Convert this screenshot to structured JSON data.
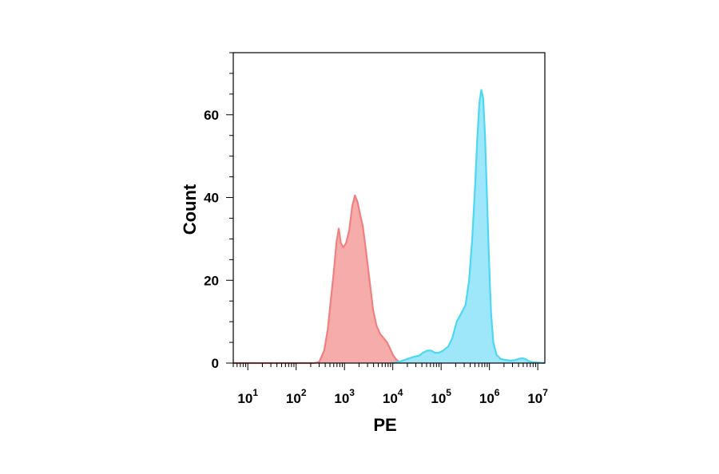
{
  "chart_data": {
    "type": "area",
    "x_scale": "log",
    "xlabel": "PE",
    "ylabel": "Count",
    "xlim": [
      5,
      14000000
    ],
    "ylim": [
      0,
      75
    ],
    "x_ticks": [
      {
        "base": "10",
        "exp": "1",
        "value": 10
      },
      {
        "base": "10",
        "exp": "2",
        "value": 100
      },
      {
        "base": "10",
        "exp": "3",
        "value": 1000
      },
      {
        "base": "10",
        "exp": "4",
        "value": 10000
      },
      {
        "base": "10",
        "exp": "5",
        "value": 100000
      },
      {
        "base": "10",
        "exp": "6",
        "value": 1000000
      },
      {
        "base": "10",
        "exp": "7",
        "value": 10000000
      }
    ],
    "y_ticks": [
      {
        "label": "0",
        "value": 0
      },
      {
        "label": "20",
        "value": 20
      },
      {
        "label": "40",
        "value": 40
      },
      {
        "label": "60",
        "value": 60
      }
    ],
    "grid": false,
    "series": [
      {
        "color": "#f08080",
        "fill": "#f7a8a8",
        "points": [
          [
            5,
            0
          ],
          [
            240,
            0
          ],
          [
            300,
            0.3
          ],
          [
            380,
            3
          ],
          [
            450,
            8
          ],
          [
            520,
            15
          ],
          [
            600,
            22
          ],
          [
            680,
            29
          ],
          [
            760,
            32.5
          ],
          [
            840,
            29
          ],
          [
            950,
            28
          ],
          [
            1080,
            29
          ],
          [
            1250,
            32
          ],
          [
            1450,
            38
          ],
          [
            1650,
            40.5
          ],
          [
            1850,
            39
          ],
          [
            2100,
            36
          ],
          [
            2400,
            33
          ],
          [
            2800,
            27
          ],
          [
            3300,
            20
          ],
          [
            3900,
            13
          ],
          [
            4600,
            9
          ],
          [
            5500,
            7
          ],
          [
            6500,
            6
          ],
          [
            7600,
            5
          ],
          [
            8800,
            3.5
          ],
          [
            10000,
            2
          ],
          [
            11500,
            1
          ],
          [
            13000,
            0.4
          ],
          [
            15000,
            0
          ]
        ]
      },
      {
        "color": "#4dd7f2",
        "fill": "#99e6fa",
        "points": [
          [
            10000,
            0
          ],
          [
            15000,
            0.5
          ],
          [
            20000,
            1
          ],
          [
            27000,
            1.5
          ],
          [
            35000,
            1.8
          ],
          [
            42000,
            2.5
          ],
          [
            52000,
            3
          ],
          [
            62000,
            3
          ],
          [
            75000,
            2.5
          ],
          [
            90000,
            2.5
          ],
          [
            110000,
            3
          ],
          [
            140000,
            4
          ],
          [
            170000,
            6
          ],
          [
            210000,
            10
          ],
          [
            260000,
            12
          ],
          [
            320000,
            14
          ],
          [
            380000,
            20
          ],
          [
            440000,
            30
          ],
          [
            500000,
            42
          ],
          [
            560000,
            54
          ],
          [
            620000,
            63
          ],
          [
            680000,
            66
          ],
          [
            740000,
            64
          ],
          [
            810000,
            55
          ],
          [
            890000,
            40
          ],
          [
            980000,
            25
          ],
          [
            1080000,
            12
          ],
          [
            1200000,
            5
          ],
          [
            1400000,
            2
          ],
          [
            1700000,
            1
          ],
          [
            2100000,
            0.8
          ],
          [
            2700000,
            0.6
          ],
          [
            3300000,
            0.7
          ],
          [
            4000000,
            1
          ],
          [
            4700000,
            1.2
          ],
          [
            5500000,
            1
          ],
          [
            6500000,
            0.5
          ],
          [
            8000000,
            0.2
          ],
          [
            14000000,
            0
          ]
        ]
      }
    ]
  }
}
